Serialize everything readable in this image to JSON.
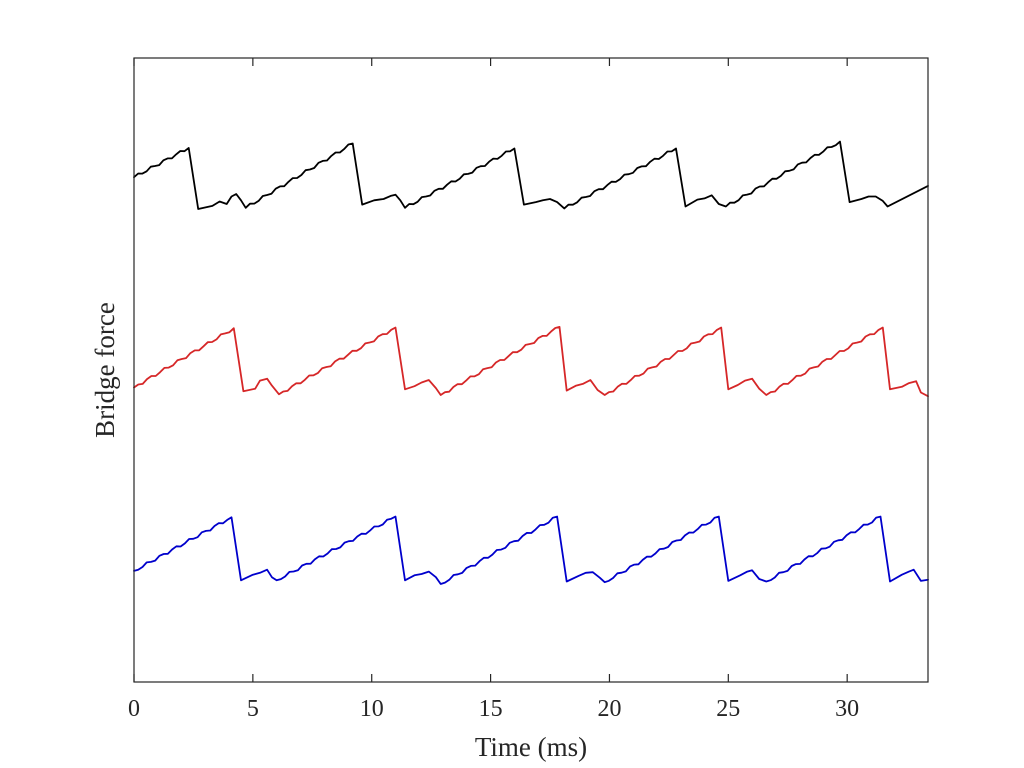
{
  "chart_data": {
    "type": "line",
    "title": "",
    "xlabel": "Time (ms)",
    "ylabel": "Bridge force",
    "xlim": [
      0,
      33.4
    ],
    "ylim": [
      0,
      1
    ],
    "xticks": [
      0,
      5,
      10,
      15,
      20,
      25,
      30
    ],
    "xtick_labels": [
      "0",
      "5",
      "10",
      "15",
      "20",
      "25",
      "30"
    ],
    "yticks": [],
    "grid": false,
    "legend": "none",
    "period_ms": 6.85,
    "series": [
      {
        "name": "black trace",
        "color": "#000000",
        "points": [
          [
            0,
            0.809
          ],
          [
            2.3,
            0.856
          ],
          [
            2.7,
            0.758
          ],
          [
            3.3,
            0.763
          ],
          [
            3.6,
            0.77
          ],
          [
            3.9,
            0.766
          ],
          [
            4.1,
            0.778
          ],
          [
            4.3,
            0.782
          ],
          [
            4.5,
            0.772
          ],
          [
            4.7,
            0.76
          ],
          [
            9.2,
            0.863
          ],
          [
            9.6,
            0.765
          ],
          [
            10.1,
            0.772
          ],
          [
            10.5,
            0.774
          ],
          [
            10.8,
            0.779
          ],
          [
            11.0,
            0.781
          ],
          [
            11.2,
            0.772
          ],
          [
            11.4,
            0.76
          ],
          [
            16.0,
            0.855
          ],
          [
            16.4,
            0.765
          ],
          [
            16.9,
            0.769
          ],
          [
            17.2,
            0.772
          ],
          [
            17.5,
            0.774
          ],
          [
            17.8,
            0.769
          ],
          [
            18.1,
            0.759
          ],
          [
            22.8,
            0.855
          ],
          [
            23.2,
            0.762
          ],
          [
            23.7,
            0.773
          ],
          [
            24.0,
            0.775
          ],
          [
            24.3,
            0.78
          ],
          [
            24.6,
            0.766
          ],
          [
            24.9,
            0.762
          ],
          [
            29.7,
            0.866
          ],
          [
            30.1,
            0.769
          ],
          [
            30.6,
            0.774
          ],
          [
            30.9,
            0.778
          ],
          [
            31.2,
            0.778
          ],
          [
            31.5,
            0.771
          ],
          [
            31.7,
            0.762
          ],
          [
            33.4,
            0.795
          ]
        ]
      },
      {
        "name": "red trace",
        "color": "#d62728",
        "points": [
          [
            0,
            0.472
          ],
          [
            4.2,
            0.567
          ],
          [
            4.6,
            0.466
          ],
          [
            5.1,
            0.47
          ],
          [
            5.3,
            0.483
          ],
          [
            5.6,
            0.486
          ],
          [
            5.8,
            0.475
          ],
          [
            6.1,
            0.461
          ],
          [
            11.0,
            0.568
          ],
          [
            11.4,
            0.469
          ],
          [
            11.8,
            0.474
          ],
          [
            12.1,
            0.48
          ],
          [
            12.4,
            0.484
          ],
          [
            12.7,
            0.471
          ],
          [
            12.9,
            0.46
          ],
          [
            17.9,
            0.569
          ],
          [
            18.2,
            0.467
          ],
          [
            18.6,
            0.475
          ],
          [
            18.9,
            0.478
          ],
          [
            19.2,
            0.484
          ],
          [
            19.5,
            0.468
          ],
          [
            19.8,
            0.46
          ],
          [
            24.7,
            0.568
          ],
          [
            25.0,
            0.469
          ],
          [
            25.4,
            0.476
          ],
          [
            25.7,
            0.483
          ],
          [
            26.0,
            0.486
          ],
          [
            26.3,
            0.47
          ],
          [
            26.6,
            0.46
          ],
          [
            31.5,
            0.568
          ],
          [
            31.8,
            0.469
          ],
          [
            32.3,
            0.473
          ],
          [
            32.6,
            0.479
          ],
          [
            32.9,
            0.482
          ],
          [
            33.1,
            0.464
          ],
          [
            33.4,
            0.458
          ]
        ]
      },
      {
        "name": "blue trace",
        "color": "#0000cc",
        "points": [
          [
            0,
            0.178
          ],
          [
            4.1,
            0.264
          ],
          [
            4.5,
            0.163
          ],
          [
            5.0,
            0.172
          ],
          [
            5.3,
            0.175
          ],
          [
            5.6,
            0.18
          ],
          [
            5.8,
            0.168
          ],
          [
            6.0,
            0.163
          ],
          [
            11.0,
            0.265
          ],
          [
            11.4,
            0.163
          ],
          [
            11.8,
            0.171
          ],
          [
            12.1,
            0.173
          ],
          [
            12.4,
            0.177
          ],
          [
            12.7,
            0.168
          ],
          [
            12.9,
            0.157
          ],
          [
            17.8,
            0.265
          ],
          [
            18.2,
            0.161
          ],
          [
            18.7,
            0.17
          ],
          [
            19.0,
            0.175
          ],
          [
            19.3,
            0.176
          ],
          [
            19.6,
            0.167
          ],
          [
            19.8,
            0.16
          ],
          [
            24.6,
            0.265
          ],
          [
            25.0,
            0.162
          ],
          [
            25.5,
            0.171
          ],
          [
            25.8,
            0.177
          ],
          [
            26.0,
            0.179
          ],
          [
            26.3,
            0.165
          ],
          [
            26.6,
            0.161
          ],
          [
            31.4,
            0.265
          ],
          [
            31.8,
            0.161
          ],
          [
            32.3,
            0.172
          ],
          [
            32.6,
            0.177
          ],
          [
            32.8,
            0.18
          ],
          [
            33.1,
            0.162
          ],
          [
            33.4,
            0.164
          ]
        ]
      }
    ]
  }
}
